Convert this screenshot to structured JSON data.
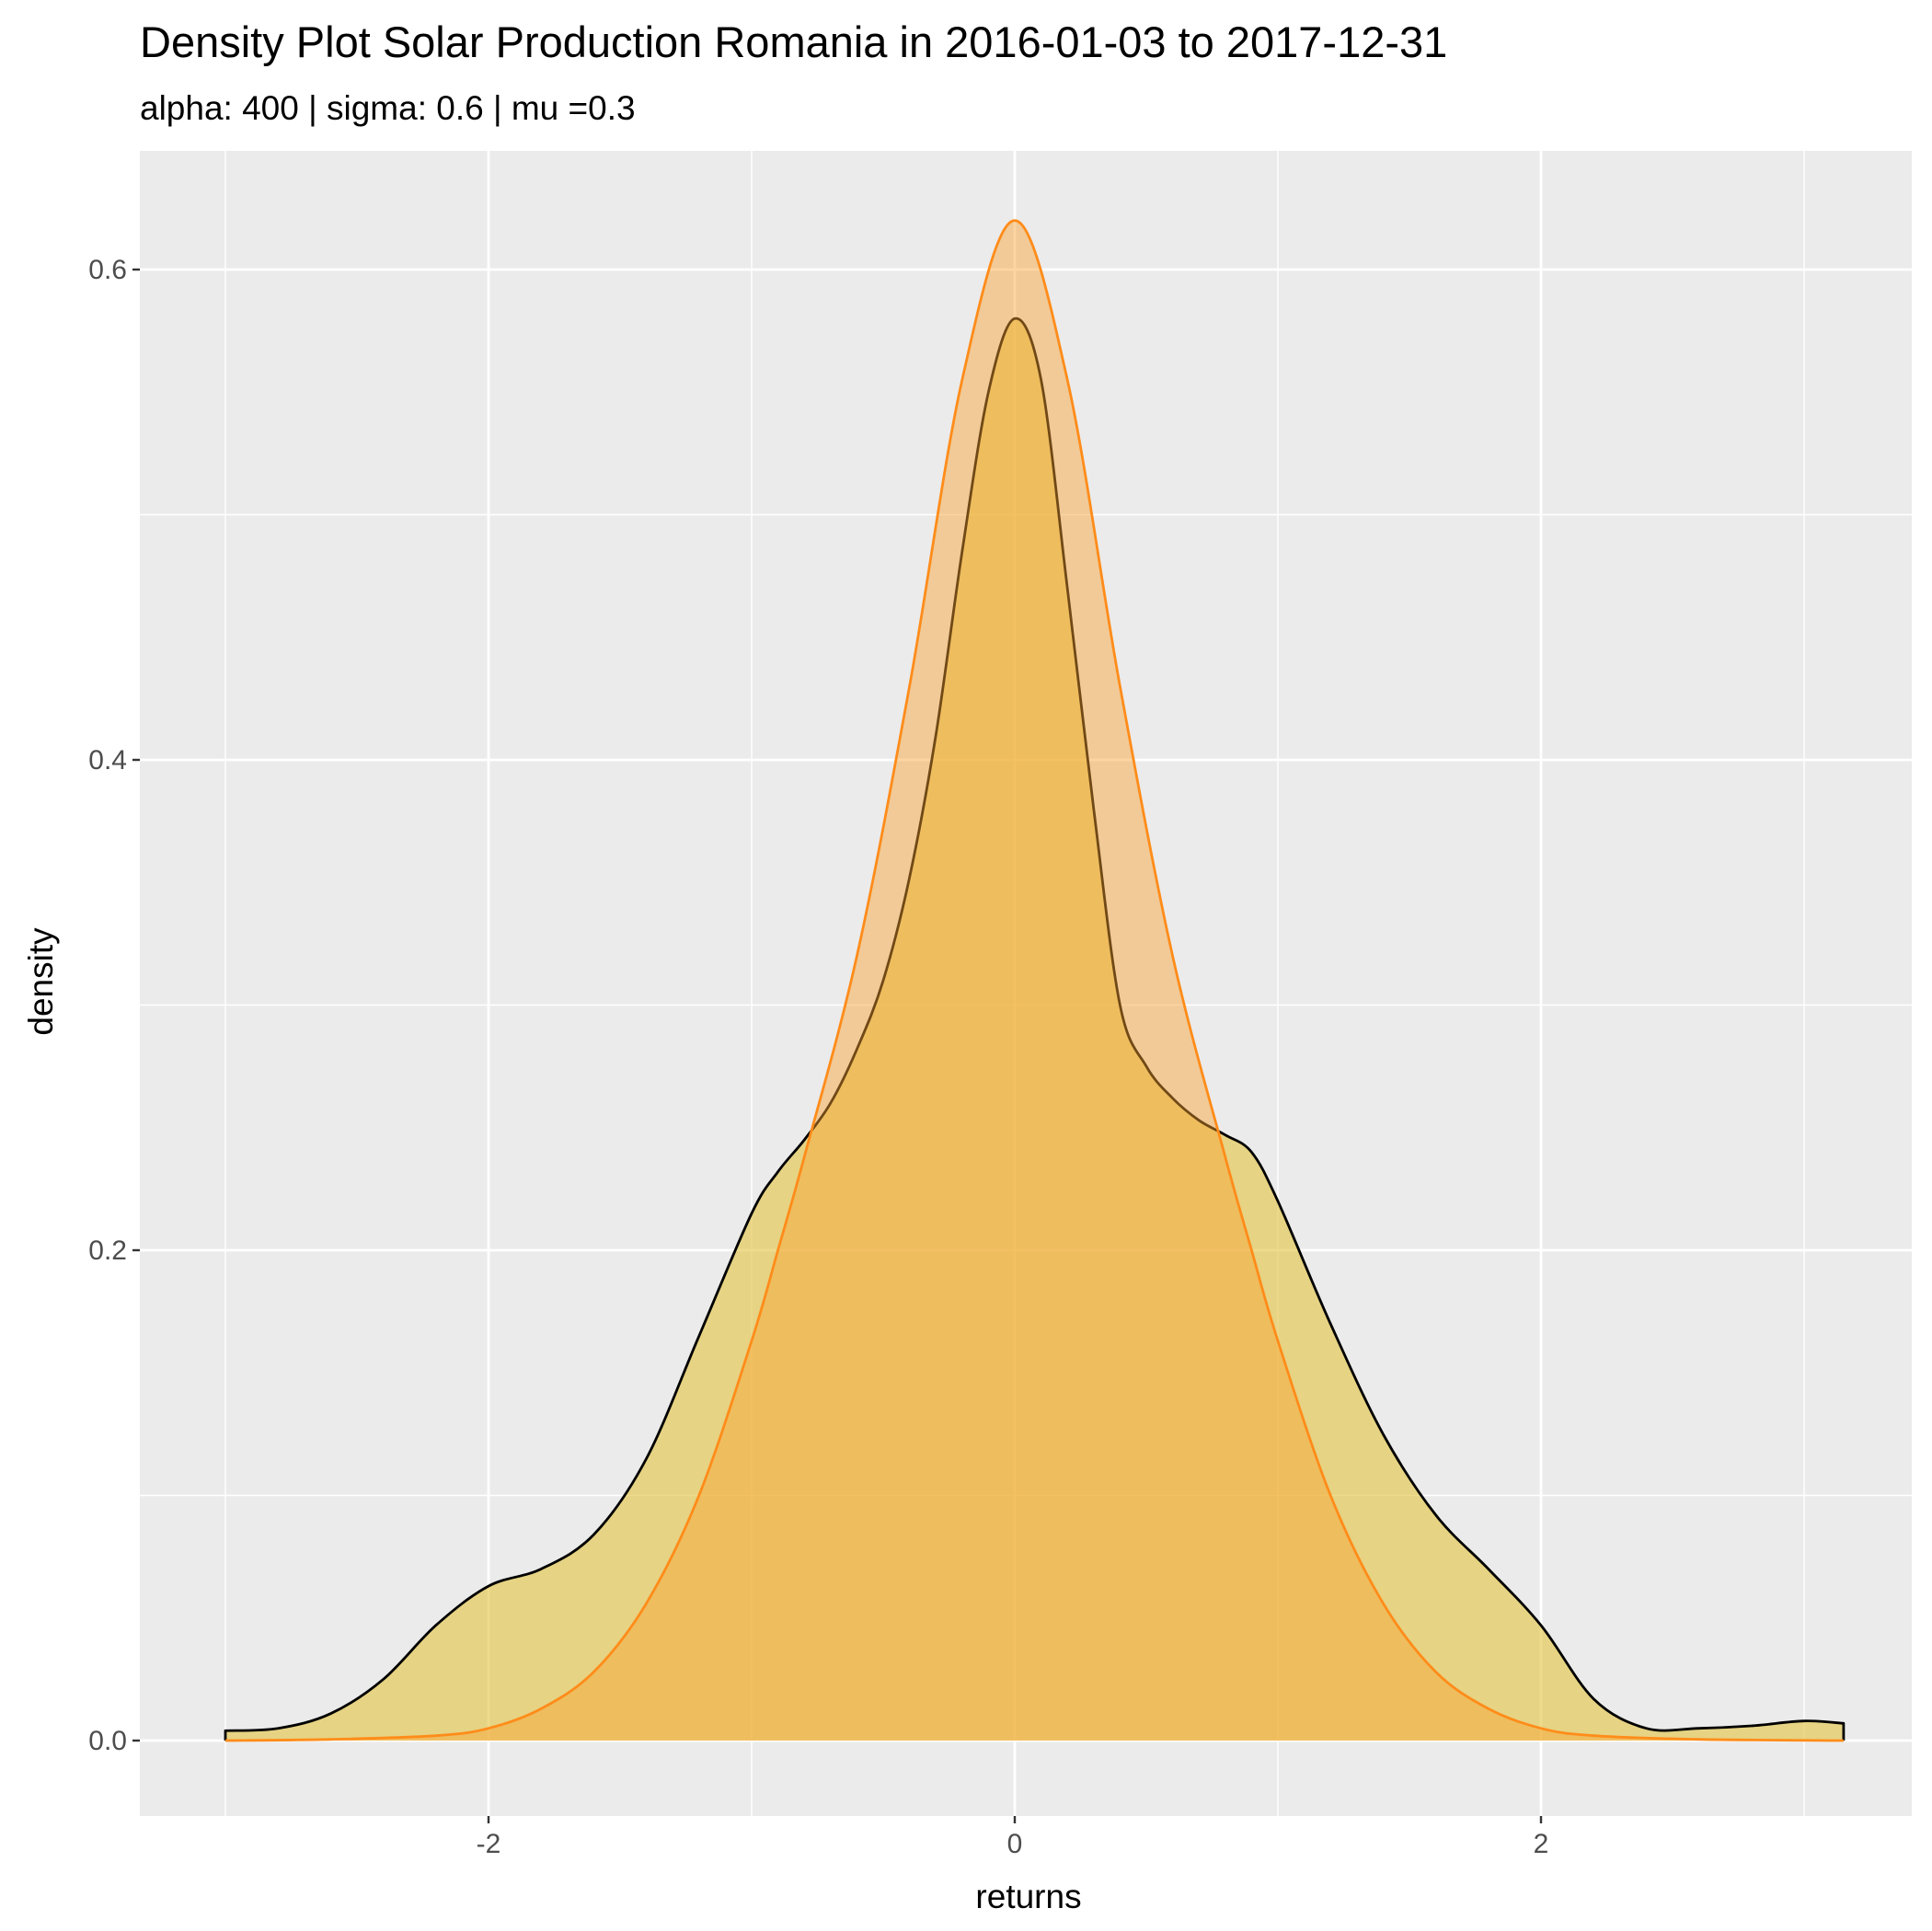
{
  "chart_data": {
    "type": "area",
    "title": "Density Plot Solar Production Romania in 2016-01-03 to 2017-12-31",
    "subtitle": "alpha: 400 | sigma: 0.6 | mu =0.3",
    "xlabel": "returns",
    "ylabel": "density",
    "xlim": [
      -3.3,
      3.3
    ],
    "ylim": [
      -0.031,
      0.65
    ],
    "x_ticks": [
      -2,
      0,
      2
    ],
    "x_tick_labels": [
      "-2",
      "0",
      "2"
    ],
    "y_ticks": [
      0.0,
      0.2,
      0.4,
      0.6
    ],
    "y_tick_labels": [
      "0.0",
      "0.2",
      "0.4",
      "0.6"
    ],
    "grid": true,
    "background": "#ebebeb",
    "series": [
      {
        "fill": "#e3c33d",
        "fill_opacity": 0.6,
        "stroke": "#000000",
        "x": [
          -3.0,
          -2.8,
          -2.6,
          -2.4,
          -2.2,
          -2.0,
          -1.8,
          -1.6,
          -1.4,
          -1.2,
          -1.0,
          -0.9,
          -0.8,
          -0.7,
          -0.6,
          -0.5,
          -0.4,
          -0.3,
          -0.2,
          -0.1,
          0.0,
          0.1,
          0.2,
          0.3,
          0.4,
          0.5,
          0.6,
          0.7,
          0.8,
          0.9,
          1.0,
          1.2,
          1.4,
          1.6,
          1.8,
          2.0,
          2.2,
          2.4,
          2.6,
          2.8,
          3.0,
          3.15
        ],
        "y": [
          0.004,
          0.005,
          0.011,
          0.025,
          0.047,
          0.063,
          0.07,
          0.084,
          0.115,
          0.165,
          0.215,
          0.232,
          0.245,
          0.26,
          0.282,
          0.31,
          0.352,
          0.41,
          0.485,
          0.55,
          0.58,
          0.555,
          0.47,
          0.38,
          0.3,
          0.275,
          0.262,
          0.253,
          0.247,
          0.24,
          0.22,
          0.17,
          0.125,
          0.092,
          0.07,
          0.047,
          0.017,
          0.005,
          0.005,
          0.006,
          0.008,
          0.007
        ]
      },
      {
        "fill": "#f8a131",
        "fill_opacity": 0.45,
        "stroke": "#ff8c1a",
        "x": [
          -3.0,
          -2.6,
          -2.2,
          -2.0,
          -1.8,
          -1.6,
          -1.4,
          -1.2,
          -1.0,
          -0.9,
          -0.8,
          -0.6,
          -0.4,
          -0.2,
          0.0,
          0.2,
          0.4,
          0.6,
          0.8,
          0.9,
          1.0,
          1.2,
          1.4,
          1.6,
          1.8,
          2.0,
          2.2,
          2.6,
          3.15
        ],
        "y": [
          0.0,
          0.0005,
          0.002,
          0.005,
          0.013,
          0.028,
          0.056,
          0.1,
          0.163,
          0.2,
          0.238,
          0.32,
          0.43,
          0.555,
          0.62,
          0.555,
          0.43,
          0.32,
          0.238,
          0.2,
          0.163,
          0.1,
          0.056,
          0.028,
          0.013,
          0.005,
          0.002,
          0.0005,
          0.0
        ]
      }
    ]
  }
}
